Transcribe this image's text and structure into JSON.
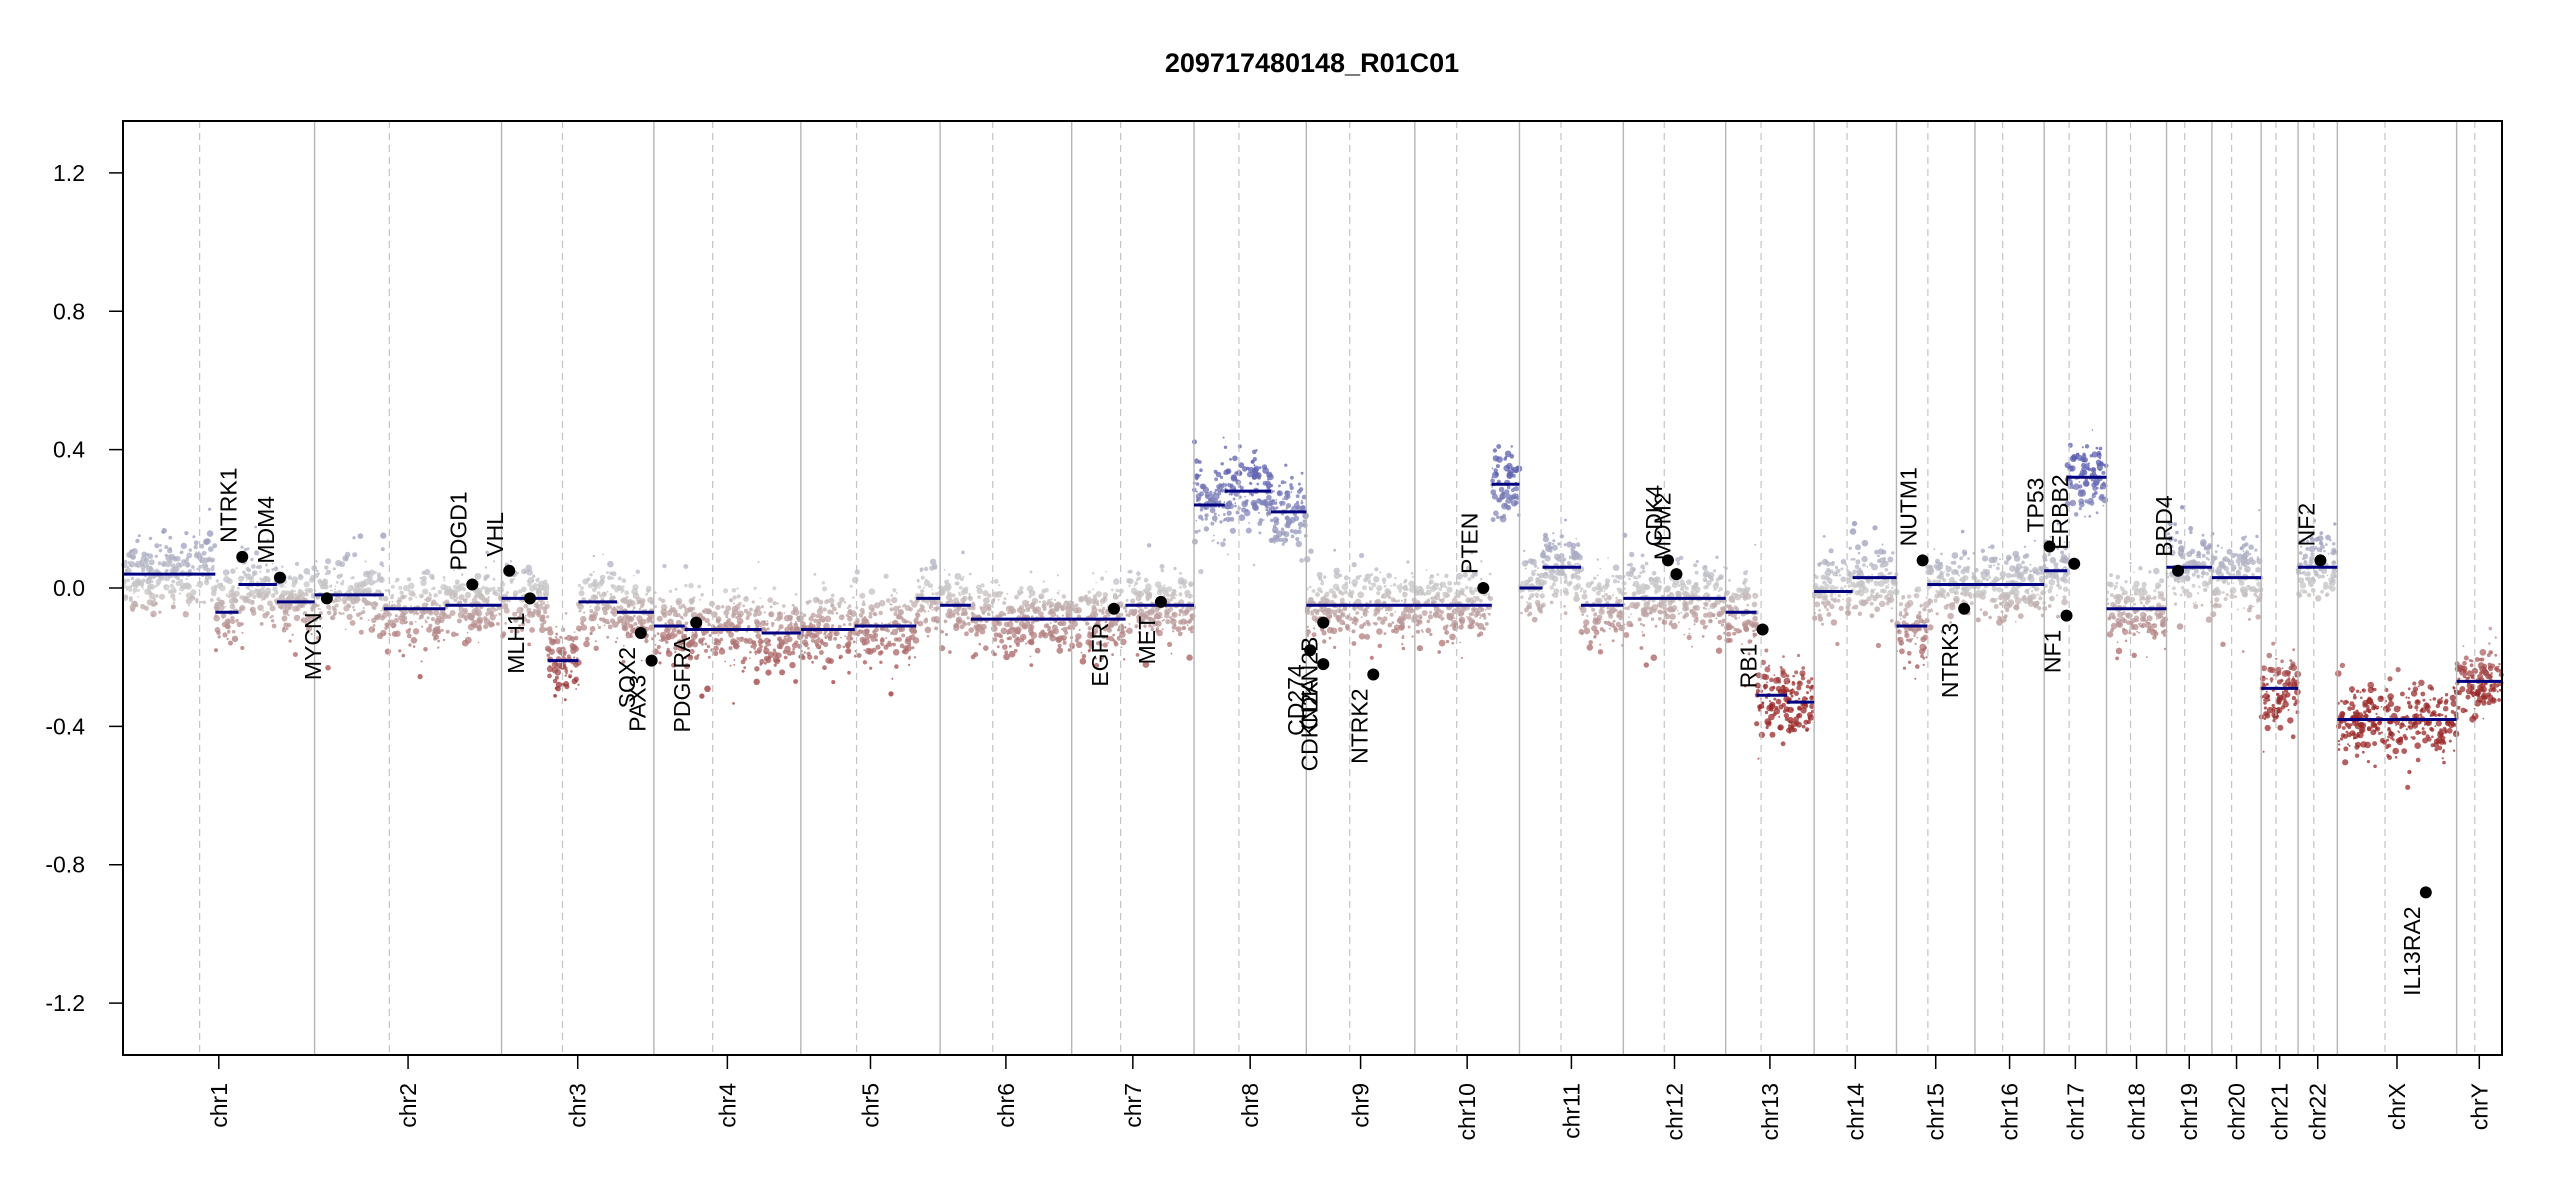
{
  "chart_data": {
    "type": "scatter",
    "title": "209717480148_R01C01",
    "xlabel": "",
    "ylabel": "",
    "ylim": [
      -1.35,
      1.35
    ],
    "yticks": [
      "-1.2",
      "-0.8",
      "-0.4",
      "0.0",
      "0.4",
      "0.8",
      "1.2"
    ],
    "ytick_values": [
      -1.2,
      -0.8,
      -0.4,
      0.0,
      0.4,
      0.8,
      1.2
    ],
    "point_colors": {
      "gain": "#5b5fb0",
      "neutral": "#c8c8c8",
      "loss": "#9b2a2a"
    },
    "segment_color": "#000080",
    "chromosomes": [
      {
        "name": "chr1",
        "len": 249,
        "segments": [
          [
            0,
            120,
            0.04
          ],
          [
            120,
            150,
            -0.07
          ],
          [
            150,
            200,
            0.01
          ],
          [
            200,
            249,
            -0.04
          ]
        ]
      },
      {
        "name": "chr2",
        "len": 243,
        "segments": [
          [
            0,
            90,
            -0.02
          ],
          [
            90,
            170,
            -0.06
          ],
          [
            170,
            243,
            -0.05
          ]
        ]
      },
      {
        "name": "chr3",
        "len": 198,
        "segments": [
          [
            0,
            60,
            -0.03
          ],
          [
            60,
            100,
            -0.21
          ],
          [
            100,
            150,
            -0.04
          ],
          [
            150,
            198,
            -0.07
          ]
        ]
      },
      {
        "name": "chr4",
        "len": 191,
        "segments": [
          [
            0,
            40,
            -0.11
          ],
          [
            40,
            140,
            -0.12
          ],
          [
            140,
            191,
            -0.13
          ]
        ]
      },
      {
        "name": "chr5",
        "len": 181,
        "segments": [
          [
            0,
            70,
            -0.12
          ],
          [
            70,
            150,
            -0.11
          ],
          [
            150,
            181,
            -0.03
          ]
        ]
      },
      {
        "name": "chr6",
        "len": 171,
        "segments": [
          [
            0,
            40,
            -0.05
          ],
          [
            40,
            171,
            -0.09
          ]
        ]
      },
      {
        "name": "chr7",
        "len": 159,
        "segments": [
          [
            0,
            70,
            -0.09
          ],
          [
            70,
            159,
            -0.05
          ]
        ]
      },
      {
        "name": "chr8",
        "len": 146,
        "segments": [
          [
            0,
            40,
            0.24
          ],
          [
            40,
            100,
            0.28
          ],
          [
            100,
            146,
            0.22
          ]
        ]
      },
      {
        "name": "chr9",
        "len": 141,
        "segments": [
          [
            0,
            141,
            -0.05
          ]
        ]
      },
      {
        "name": "chr10",
        "len": 136,
        "segments": [
          [
            0,
            100,
            -0.05
          ],
          [
            100,
            136,
            0.3
          ]
        ]
      },
      {
        "name": "chr11",
        "len": 135,
        "segments": [
          [
            0,
            30,
            0.0
          ],
          [
            30,
            80,
            0.06
          ],
          [
            80,
            135,
            -0.05
          ]
        ]
      },
      {
        "name": "chr12",
        "len": 133,
        "segments": [
          [
            0,
            133,
            -0.03
          ]
        ]
      },
      {
        "name": "chr13",
        "len": 115,
        "segments": [
          [
            0,
            40,
            -0.07
          ],
          [
            40,
            80,
            -0.31
          ],
          [
            80,
            115,
            -0.33
          ]
        ]
      },
      {
        "name": "chr14",
        "len": 107,
        "segments": [
          [
            0,
            50,
            -0.01
          ],
          [
            50,
            107,
            0.03
          ]
        ]
      },
      {
        "name": "chr15",
        "len": 102,
        "segments": [
          [
            0,
            40,
            -0.11
          ],
          [
            40,
            102,
            0.01
          ]
        ]
      },
      {
        "name": "chr16",
        "len": 90,
        "segments": [
          [
            0,
            90,
            0.01
          ]
        ]
      },
      {
        "name": "chr17",
        "len": 81,
        "segments": [
          [
            0,
            30,
            0.05
          ],
          [
            30,
            81,
            0.32
          ]
        ]
      },
      {
        "name": "chr18",
        "len": 78,
        "segments": [
          [
            0,
            78,
            -0.06
          ]
        ]
      },
      {
        "name": "chr19",
        "len": 59,
        "segments": [
          [
            0,
            59,
            0.06
          ]
        ]
      },
      {
        "name": "chr20",
        "len": 64,
        "segments": [
          [
            0,
            64,
            0.03
          ]
        ]
      },
      {
        "name": "chr21",
        "len": 48,
        "segments": [
          [
            0,
            48,
            -0.29
          ]
        ]
      },
      {
        "name": "chr22",
        "len": 51,
        "segments": [
          [
            0,
            51,
            0.06
          ]
        ]
      },
      {
        "name": "chrX",
        "len": 155,
        "segments": [
          [
            0,
            155,
            -0.38
          ]
        ]
      },
      {
        "name": "chrY",
        "len": 59,
        "segments": [
          [
            0,
            59,
            -0.27
          ]
        ]
      }
    ],
    "annotations": [
      {
        "gene": "NTRK1",
        "chr": "chr1",
        "pos": 155,
        "value": 0.09
      },
      {
        "gene": "MDM4",
        "chr": "chr1",
        "pos": 204,
        "value": 0.03
      },
      {
        "gene": "MYCN",
        "chr": "chr2",
        "pos": 16,
        "value": -0.03
      },
      {
        "gene": "PDGD1",
        "chr": "chr2",
        "pos": 205,
        "value": 0.01
      },
      {
        "gene": "VHL",
        "chr": "chr3",
        "pos": 10,
        "value": 0.05
      },
      {
        "gene": "MLH1",
        "chr": "chr3",
        "pos": 37,
        "value": -0.03
      },
      {
        "gene": "SOX2",
        "chr": "chr3",
        "pos": 181,
        "value": -0.13
      },
      {
        "gene": "PAX3",
        "chr": "chr3",
        "pos": 195,
        "value": -0.21
      },
      {
        "gene": "PDGFRA",
        "chr": "chr4",
        "pos": 55,
        "value": -0.1
      },
      {
        "gene": "EGFR",
        "chr": "chr7",
        "pos": 55,
        "value": -0.06
      },
      {
        "gene": "MET",
        "chr": "chr7",
        "pos": 116,
        "value": -0.04
      },
      {
        "gene": "CD274",
        "chr": "chr9",
        "pos": 5,
        "value": -0.18
      },
      {
        "gene": "CDKN2A",
        "chr": "chr9",
        "pos": 22,
        "value": -0.22
      },
      {
        "gene": "CDKN2B",
        "chr": "chr9",
        "pos": 22,
        "value": -0.1
      },
      {
        "gene": "NTRK2",
        "chr": "chr9",
        "pos": 87,
        "value": -0.25
      },
      {
        "gene": "PTEN",
        "chr": "chr10",
        "pos": 89,
        "value": 0.0
      },
      {
        "gene": "CDK4",
        "chr": "chr12",
        "pos": 58,
        "value": 0.08
      },
      {
        "gene": "MDM2",
        "chr": "chr12",
        "pos": 69,
        "value": 0.04
      },
      {
        "gene": "RB1",
        "chr": "chr13",
        "pos": 48,
        "value": -0.12
      },
      {
        "gene": "NUTM1",
        "chr": "chr15",
        "pos": 34,
        "value": 0.08
      },
      {
        "gene": "NTRK3",
        "chr": "chr15",
        "pos": 88,
        "value": -0.06
      },
      {
        "gene": "TP53",
        "chr": "chr17",
        "pos": 7,
        "value": 0.12
      },
      {
        "gene": "NF1",
        "chr": "chr17",
        "pos": 29,
        "value": -0.08
      },
      {
        "gene": "ERBB2",
        "chr": "chr17",
        "pos": 39,
        "value": 0.07
      },
      {
        "gene": "BRD4",
        "chr": "chr19",
        "pos": 15,
        "value": 0.05
      },
      {
        "gene": "NF2",
        "chr": "chr22",
        "pos": 29,
        "value": 0.08
      },
      {
        "gene": "IL13RA2",
        "chr": "chrX",
        "pos": 115,
        "value": -0.88
      }
    ]
  }
}
